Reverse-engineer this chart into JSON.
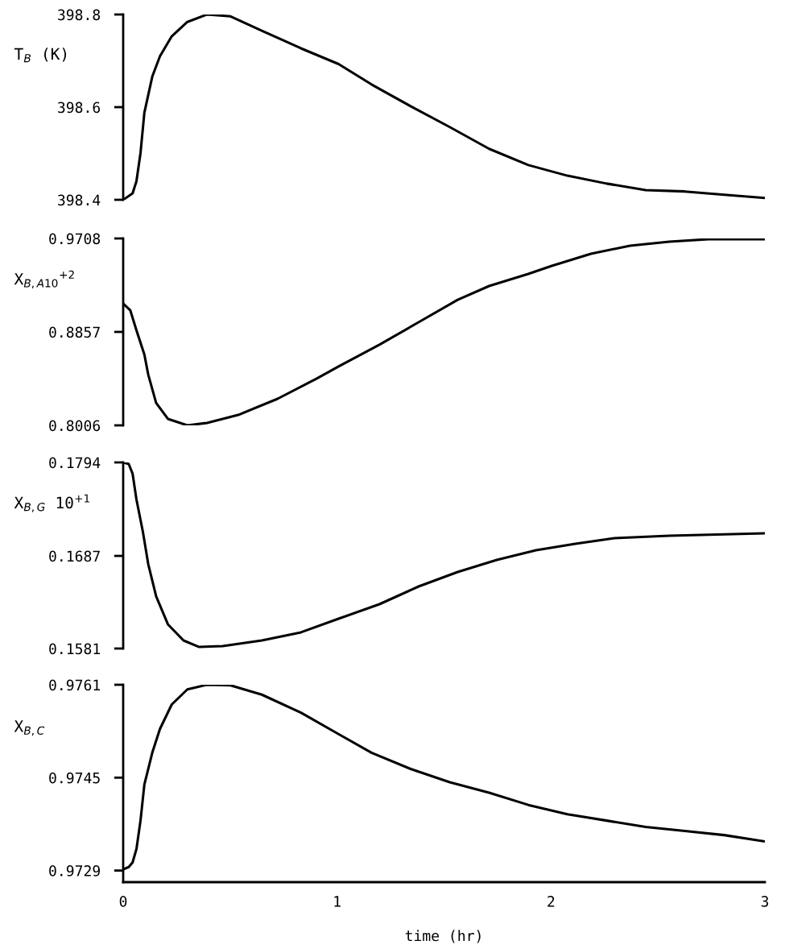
{
  "chart_data": [
    {
      "type": "line",
      "ylabel": "T$_{B}$ (K)",
      "xlim": [
        0,
        3
      ],
      "ylim": [
        398.4,
        398.8
      ],
      "yticks": [
        398.4,
        398.6,
        398.8
      ],
      "tick_labels": "y",
      "grid": false,
      "legend": false,
      "series": [
        {
          "color": "#000000",
          "x": [
            0,
            0.044,
            0.062,
            0.081,
            0.099,
            0.136,
            0.172,
            0.227,
            0.3,
            0.392,
            0.502,
            0.648,
            0.831,
            1.007,
            1.161,
            1.344,
            1.527,
            1.711,
            1.894,
            2.077,
            2.26,
            2.443,
            2.626,
            2.81,
            3.0
          ],
          "values": [
            398.4,
            398.414,
            398.44,
            398.501,
            398.588,
            398.666,
            398.71,
            398.753,
            398.784,
            398.8,
            398.796,
            398.765,
            398.727,
            398.693,
            398.649,
            398.602,
            398.557,
            398.51,
            398.475,
            398.452,
            398.435,
            398.421,
            398.418,
            398.411,
            398.404
          ]
        }
      ]
    },
    {
      "type": "line",
      "ylabel": "X$_{B,A10}$$^{+2}$",
      "xlim": [
        0,
        3
      ],
      "ylim": [
        0.8006,
        0.9708
      ],
      "yticks": [
        0.8006,
        0.8857,
        0.9708
      ],
      "tick_labels": "y",
      "grid": false,
      "legend": false,
      "series": [
        {
          "color": "#000000",
          "x": [
            0,
            0.033,
            0.062,
            0.099,
            0.117,
            0.154,
            0.209,
            0.3,
            0.392,
            0.538,
            0.722,
            0.905,
            1.007,
            1.198,
            1.381,
            1.564,
            1.711,
            1.894,
            2.004,
            2.187,
            2.37,
            2.553,
            2.736,
            3.0
          ],
          "values": [
            0.9114,
            0.9055,
            0.8872,
            0.8652,
            0.8469,
            0.8211,
            0.8065,
            0.8006,
            0.8028,
            0.8101,
            0.8248,
            0.8432,
            0.8542,
            0.874,
            0.8945,
            0.915,
            0.9275,
            0.9385,
            0.9459,
            0.9569,
            0.9642,
            0.9679,
            0.9701,
            0.9701
          ]
        }
      ]
    },
    {
      "type": "line",
      "ylabel": "X$_{B,G}$ 10$^{+1}$",
      "xlim": [
        0,
        3
      ],
      "ylim": [
        0.1581,
        0.1794
      ],
      "yticks": [
        0.1581,
        0.1687,
        0.1794
      ],
      "tick_labels": "y",
      "grid": false,
      "legend": false,
      "series": [
        {
          "color": "#000000",
          "x": [
            0,
            0.026,
            0.044,
            0.062,
            0.092,
            0.117,
            0.154,
            0.209,
            0.282,
            0.355,
            0.465,
            0.648,
            0.831,
            1.007,
            1.198,
            1.381,
            1.564,
            1.747,
            1.93,
            2.114,
            2.297,
            2.553,
            3.0
          ],
          "values": [
            0.1794,
            0.17922,
            0.17811,
            0.17516,
            0.17147,
            0.16778,
            0.16409,
            0.16087,
            0.15902,
            0.15828,
            0.15838,
            0.15902,
            0.15995,
            0.16151,
            0.16317,
            0.1652,
            0.16686,
            0.16824,
            0.16935,
            0.17009,
            0.17073,
            0.17101,
            0.17129
          ]
        }
      ]
    },
    {
      "type": "line",
      "ylabel": "X$_{B,C}$",
      "xlabel": "time (hr)",
      "xlim": [
        0,
        3
      ],
      "xticks": [
        0,
        1,
        2,
        3
      ],
      "ylim": [
        0.9727,
        0.9761
      ],
      "yticks": [
        {
          "value": 0.9729,
          "label": "0.9729"
        },
        {
          "value": 0.9745,
          "label": "0.9745"
        },
        {
          "value": 0.9761,
          "label": "0.9761"
        }
      ],
      "grid": false,
      "legend": false,
      "series": [
        {
          "color": "#000000",
          "x": [
            0,
            0.026,
            0.044,
            0.062,
            0.081,
            0.099,
            0.136,
            0.172,
            0.227,
            0.3,
            0.392,
            0.502,
            0.648,
            0.831,
            1.007,
            1.161,
            1.344,
            1.527,
            1.711,
            1.894,
            2.077,
            2.26,
            2.443,
            2.626,
            2.81,
            3.0
          ],
          "values": [
            0.97292,
            0.97296,
            0.97304,
            0.97327,
            0.97376,
            0.97438,
            0.97493,
            0.97534,
            0.97576,
            0.97602,
            0.9761,
            0.97609,
            0.97593,
            0.97562,
            0.97525,
            0.97493,
            0.97465,
            0.97442,
            0.97424,
            0.97403,
            0.97387,
            0.97376,
            0.97365,
            0.97358,
            0.97351,
            0.9734
          ]
        }
      ]
    }
  ]
}
